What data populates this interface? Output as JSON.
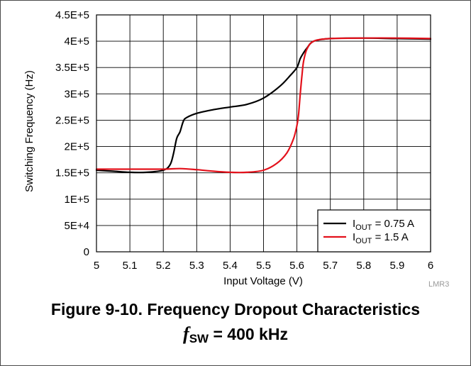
{
  "chart_data": {
    "type": "line",
    "xlabel": "Input Voltage (V)",
    "ylabel": "Switching Frequency (Hz)",
    "xlim": [
      5,
      6
    ],
    "ylim": [
      0,
      450000
    ],
    "grid": true,
    "legend_position": "bottom-right",
    "x_ticks": [
      "5",
      "5.1",
      "5.2",
      "5.3",
      "5.4",
      "5.5",
      "5.6",
      "5.7",
      "5.8",
      "5.9",
      "6"
    ],
    "y_ticks": [
      "0",
      "5E+4",
      "1E+5",
      "1.5E+5",
      "2E+5",
      "2.5E+5",
      "3E+5",
      "3.5E+5",
      "4E+5",
      "4.5E+5"
    ],
    "series": [
      {
        "legend_main": "I",
        "legend_sub": "OUT",
        "legend_rest": " = 0.75 A",
        "color": "#000000",
        "points": [
          [
            5.0,
            155000
          ],
          [
            5.05,
            153000
          ],
          [
            5.1,
            151000
          ],
          [
            5.15,
            151000
          ],
          [
            5.2,
            155000
          ],
          [
            5.22,
            165000
          ],
          [
            5.23,
            185000
          ],
          [
            5.24,
            215000
          ],
          [
            5.25,
            228000
          ],
          [
            5.26,
            248000
          ],
          [
            5.27,
            255000
          ],
          [
            5.3,
            263000
          ],
          [
            5.35,
            270000
          ],
          [
            5.4,
            275000
          ],
          [
            5.45,
            280000
          ],
          [
            5.5,
            292000
          ],
          [
            5.55,
            315000
          ],
          [
            5.58,
            335000
          ],
          [
            5.6,
            350000
          ],
          [
            5.61,
            367000
          ],
          [
            5.62,
            378000
          ],
          [
            5.63,
            387000
          ],
          [
            5.65,
            400000
          ],
          [
            5.7,
            405000
          ],
          [
            5.8,
            406000
          ],
          [
            5.9,
            405000
          ],
          [
            6.0,
            404000
          ]
        ]
      },
      {
        "legend_main": "I",
        "legend_sub": "OUT",
        "legend_rest": " = 1.5 A",
        "color": "#e3111b",
        "points": [
          [
            5.0,
            157000
          ],
          [
            5.1,
            157000
          ],
          [
            5.2,
            157000
          ],
          [
            5.25,
            158000
          ],
          [
            5.3,
            156000
          ],
          [
            5.35,
            153000
          ],
          [
            5.4,
            151000
          ],
          [
            5.45,
            151000
          ],
          [
            5.5,
            155000
          ],
          [
            5.54,
            168000
          ],
          [
            5.57,
            188000
          ],
          [
            5.59,
            215000
          ],
          [
            5.6,
            240000
          ],
          [
            5.605,
            262000
          ],
          [
            5.61,
            300000
          ],
          [
            5.615,
            335000
          ],
          [
            5.62,
            362000
          ],
          [
            5.63,
            385000
          ],
          [
            5.65,
            400000
          ],
          [
            5.7,
            405000
          ],
          [
            5.8,
            406000
          ],
          [
            5.9,
            406000
          ],
          [
            6.0,
            405000
          ]
        ]
      }
    ]
  },
  "watermark": "LMR3",
  "caption": {
    "line1": "Figure 9-10. Frequency Dropout Characteristics",
    "line2_symbol": "f",
    "line2_sub": "SW",
    "line2_rest": " = 400 kHz"
  }
}
